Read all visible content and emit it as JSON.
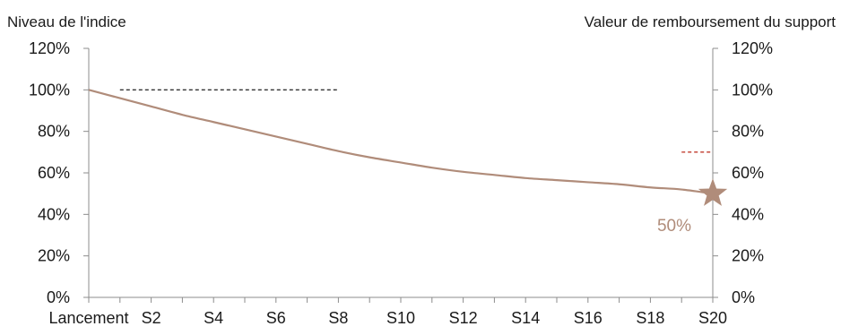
{
  "chart_data": {
    "type": "line",
    "left_axis_label": "Niveau de l'indice",
    "right_axis_label": "Valeur de remboursement du support",
    "categories": [
      "Lancement",
      "S2",
      "S4",
      "S6",
      "S8",
      "S10",
      "S12",
      "S14",
      "S16",
      "S18",
      "S20"
    ],
    "y_ticks": [
      "0%",
      "20%",
      "40%",
      "60%",
      "80%",
      "100%",
      "120%"
    ],
    "ylim": [
      0,
      120
    ],
    "periods_per_category": 2,
    "series": [
      {
        "color": "#b08c7a",
        "x": [
          0,
          1,
          2,
          3,
          4,
          5,
          6,
          7,
          8,
          9,
          10,
          11,
          12,
          13,
          14,
          15,
          16,
          17,
          18,
          19,
          20
        ],
        "values": [
          100,
          96,
          92,
          88,
          84.5,
          81,
          77.5,
          74,
          70.5,
          67.5,
          65,
          62.5,
          60.5,
          59,
          57.5,
          56.5,
          55.5,
          54.5,
          53,
          52,
          50
        ]
      }
    ],
    "reference_lines": [
      {
        "color": "#333333",
        "y": 100,
        "x_start": 1,
        "x_end": 8
      },
      {
        "color": "#c0392b",
        "y": 70,
        "x_start": 19,
        "x_end": 20
      }
    ],
    "final_marker": {
      "shape": "star",
      "color": "#b08c7a",
      "x": 20,
      "y": 50
    },
    "final_label": "50%",
    "final_label_color": "#b08c7a",
    "grid": false,
    "legend": "none"
  }
}
